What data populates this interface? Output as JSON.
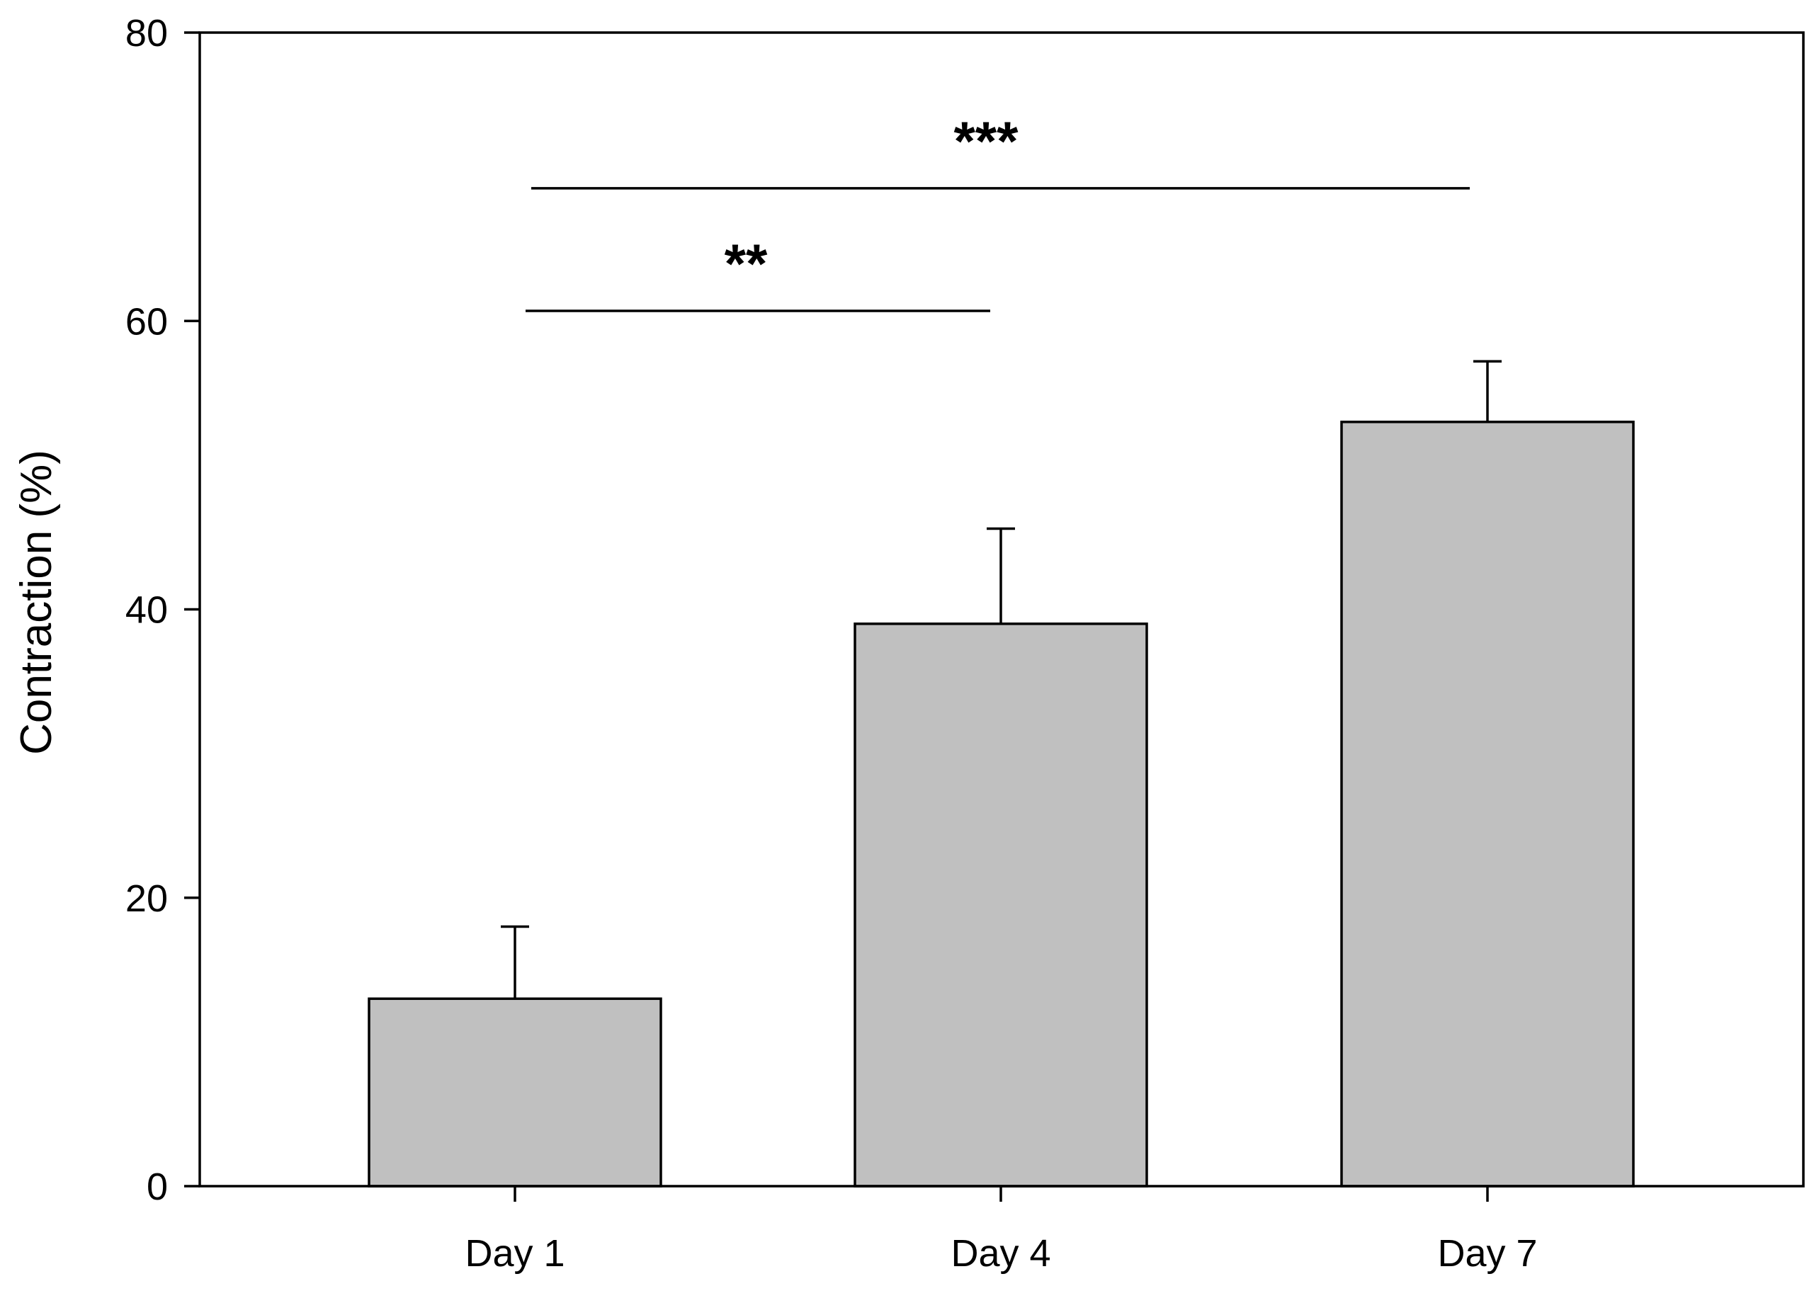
{
  "chart_data": {
    "type": "bar",
    "title": "",
    "xlabel": "",
    "ylabel": "Contraction (%)",
    "categories": [
      "Day 1",
      "Day 4",
      "Day 7"
    ],
    "values": [
      13,
      39,
      53
    ],
    "error_upper": [
      5,
      6.6,
      4.2
    ],
    "ylim": [
      0,
      80
    ],
    "yticks": [
      0,
      20,
      40,
      60,
      80
    ],
    "grid": false,
    "bar_color": "#c0c0c0",
    "significance": [
      {
        "from": "Day 1",
        "to": "Day 4",
        "label": "**",
        "y": 60.7
      },
      {
        "from": "Day 1",
        "to": "Day 7",
        "label": "***",
        "y": 69.2
      }
    ]
  }
}
